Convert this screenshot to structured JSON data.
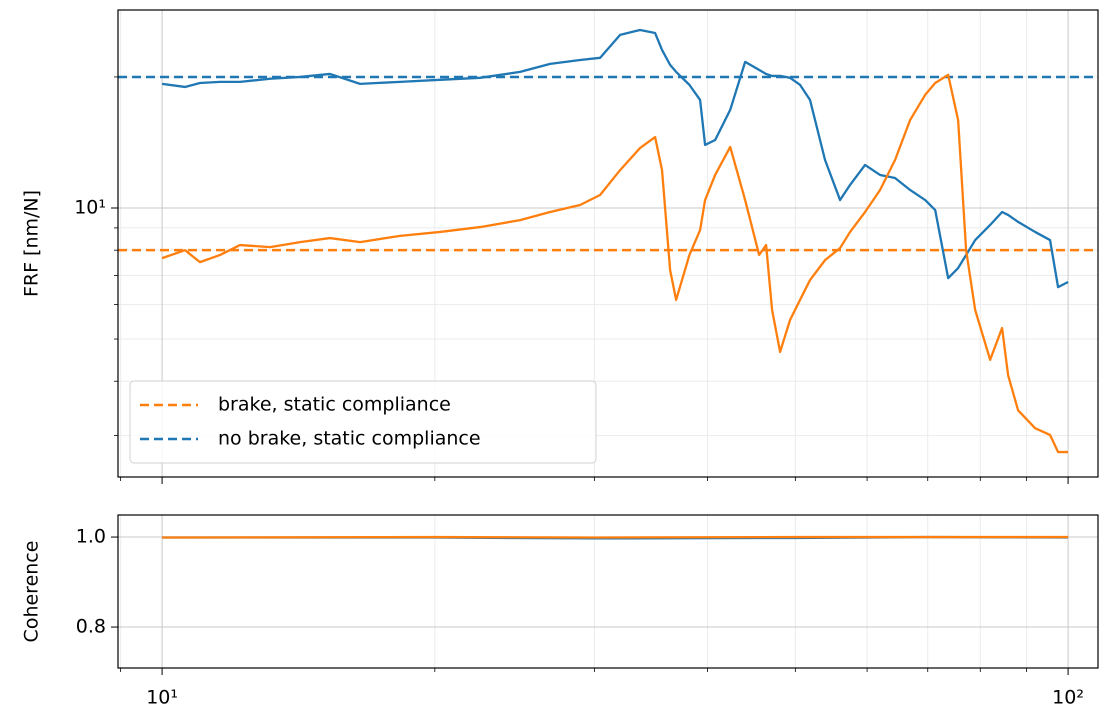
{
  "chart_data": [
    {
      "type": "line",
      "ylabel": "FRF [nm/N]",
      "xscale": "log",
      "yscale": "log",
      "grid": true,
      "minor_grid": true,
      "xlim": [
        8.94,
        107.9
      ],
      "ylim": [
        2.41,
        28.5
      ],
      "xticks": [
        10,
        100
      ],
      "yticks": [
        {
          "value": 10,
          "label": "10¹"
        }
      ],
      "x": [
        10.0,
        10.6,
        11.01,
        11.59,
        12.19,
        13.16,
        14.2,
        15.32,
        16.54,
        18.31,
        20.27,
        22.44,
        24.84,
        26.81,
        28.93,
        30.44,
        32.03,
        33.7,
        35.01,
        35.63,
        36.37,
        36.93,
        38.2,
        39.25,
        39.75,
        40.78,
        42.37,
        44.01,
        45.6,
        46.42,
        47.13,
        48.1,
        49.33,
        50.6,
        51.9,
        53.92,
        56.02,
        57.46,
        59.69,
        62.01,
        64.42,
        66.93,
        69.55,
        71.34,
        73.73,
        75.62,
        77.17,
        78.97,
        82.03,
        84.56,
        85.86,
        88.07,
        91.96,
        95.52,
        97.49,
        100.0
      ],
      "series": [
        {
          "color": "#1f77b4",
          "values": [
            19.28,
            18.97,
            19.37,
            19.49,
            19.49,
            19.81,
            20.0,
            20.32,
            19.28,
            19.49,
            19.7,
            19.91,
            20.54,
            21.43,
            21.88,
            22.13,
            24.99,
            25.64,
            25.23,
            23.07,
            21.32,
            20.54,
            19.18,
            17.71,
            13.96,
            14.33,
            16.8,
            21.66,
            20.76,
            20.32,
            20.11,
            20.11,
            19.91,
            19.18,
            17.71,
            12.89,
            10.43,
            11.3,
            12.56,
            11.91,
            11.72,
            11.0,
            10.43,
            9.89,
            6.9,
            7.28,
            7.8,
            8.44,
            9.14,
            9.79,
            9.64,
            9.29,
            8.81,
            8.44,
            6.58,
            6.76
          ]
        },
        {
          "color": "#ff7f0e",
          "values": [
            7.67,
            8.0,
            7.51,
            7.8,
            8.22,
            8.13,
            8.35,
            8.53,
            8.35,
            8.63,
            8.81,
            9.04,
            9.38,
            9.79,
            10.16,
            10.71,
            12.22,
            13.74,
            14.55,
            12.22,
            7.2,
            6.15,
            7.8,
            8.9,
            10.43,
            11.91,
            13.81,
            10.43,
            7.8,
            8.22,
            5.83,
            4.67,
            5.53,
            6.15,
            6.83,
            7.59,
            8.09,
            8.81,
            9.79,
            11.0,
            12.89,
            15.92,
            18.2,
            19.37,
            20.22,
            15.92,
            8.0,
            5.83,
            4.48,
            5.3,
            4.13,
            3.43,
            3.12,
            3.01,
            2.75,
            2.75
          ]
        }
      ],
      "reference_lines": [
        {
          "name": "brake, static compliance",
          "value": 8.0,
          "color": "#ff7f0e"
        },
        {
          "name": "no brake, static compliance",
          "value": 20.0,
          "color": "#1f77b4"
        }
      ],
      "legend": "lower left"
    },
    {
      "type": "line",
      "ylabel": "Coherence",
      "xscale": "log",
      "grid": true,
      "minor_grid": true,
      "xlim": [
        8.94,
        107.9
      ],
      "ylim": [
        0.709,
        1.049
      ],
      "xticks": [
        {
          "value": 10,
          "label": "10¹"
        },
        {
          "value": 100,
          "label": "10²"
        }
      ],
      "yticks": [
        0.8,
        {
          "value": 1,
          "label": "1.0"
        }
      ],
      "x": [
        10,
        20,
        30,
        50,
        70,
        100
      ],
      "series": [
        {
          "color": "#1f77b4",
          "values": [
            0.999,
            0.999,
            0.997,
            0.998,
            1.0,
            0.999
          ]
        },
        {
          "color": "#ff7f0e",
          "values": [
            0.999,
            1.0,
            0.999,
            1.0,
            1.0,
            1.0
          ]
        }
      ]
    }
  ]
}
